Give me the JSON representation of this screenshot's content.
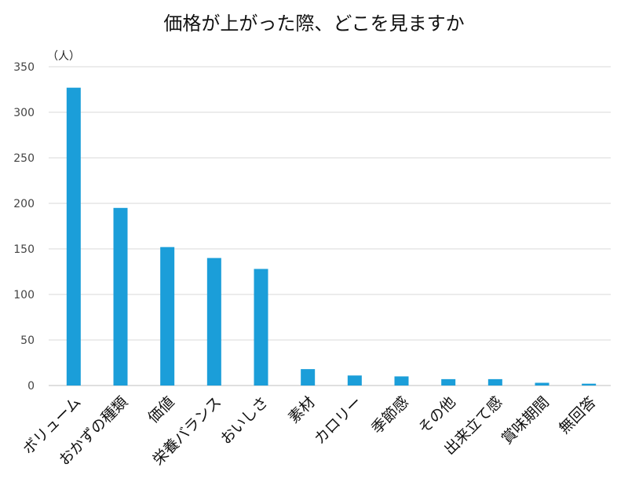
{
  "chart_data": {
    "type": "bar",
    "title": "価格が上がった際、どこを見ますか",
    "unit_label": "（人）",
    "categories": [
      "ボリューム",
      "おかずの種類",
      "価値",
      "栄養バランス",
      "おいしさ",
      "素材",
      "カロリー",
      "季節感",
      "その他",
      "出来立て感",
      "賞味期間",
      "無回答"
    ],
    "values": [
      327,
      195,
      152,
      140,
      128,
      18,
      11,
      10,
      7,
      7,
      3,
      2
    ],
    "ylim": [
      0,
      350
    ],
    "yticks": [
      0,
      50,
      100,
      150,
      200,
      250,
      300,
      350
    ],
    "grid": true,
    "bar_color": "#1b9ed9",
    "grid_color": "#d9d9d9"
  }
}
